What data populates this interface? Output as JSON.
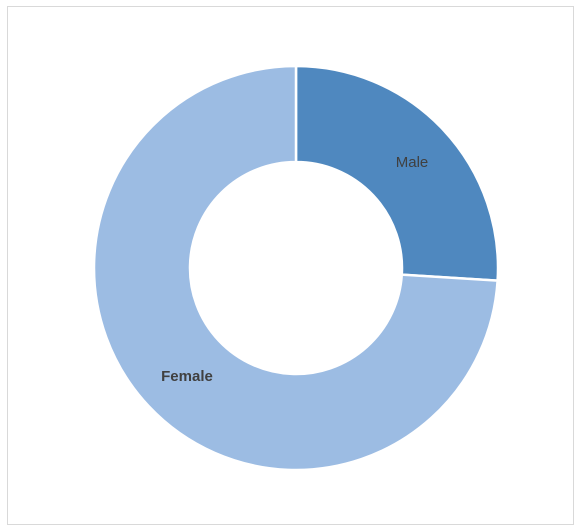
{
  "chart_data": {
    "type": "pie",
    "variant": "doughnut",
    "title": "",
    "categories": [
      "Male",
      "Female"
    ],
    "values": [
      26,
      74
    ],
    "unit": "percent",
    "colors": [
      "#4f88bf",
      "#9cbce3"
    ],
    "slice_border_color": "#ffffff",
    "legend": "none",
    "labels_shown_on_slices": true,
    "label_styles": [
      "normal",
      "bold"
    ]
  }
}
